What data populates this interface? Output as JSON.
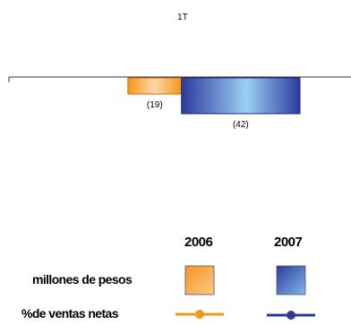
{
  "chart_data": {
    "type": "bar",
    "orientation": "horizontal",
    "title": "1T",
    "categories": [
      "1T"
    ],
    "series": [
      {
        "name": "2006",
        "values": [
          -19
        ],
        "value_label": "(19)",
        "color": "#F7941D",
        "color_light": "#FDD9A8"
      },
      {
        "name": "2007",
        "values": [
          -42
        ],
        "value_label": "(42)",
        "color": "#2E3A9A",
        "color_light": "#9BD0F5"
      }
    ],
    "grid": false
  },
  "legend": {
    "years": [
      "2006",
      "2007"
    ],
    "rows": [
      {
        "label": "millones de pesos",
        "kind": "box"
      },
      {
        "label": "%de ventas netas",
        "kind": "line-marker"
      }
    ],
    "colors": {
      "2006": "#F7941D",
      "2007": "#2E3A9A"
    }
  }
}
